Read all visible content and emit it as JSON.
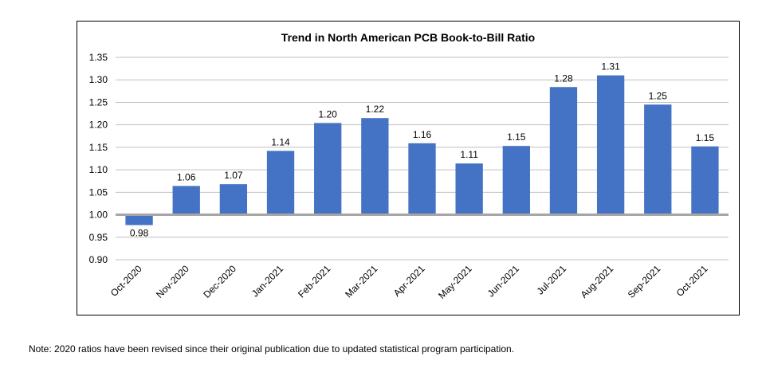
{
  "chart_data": {
    "type": "bar",
    "title": "Trend in North American PCB Book-to-Bill Ratio",
    "xlabel": "",
    "ylabel": "",
    "categories": [
      "Oct-2020",
      "Nov-2020",
      "Dec-2020",
      "Jan-2021",
      "Feb-2021",
      "Mar-2021",
      "Apr-2021",
      "May-2021",
      "Jun-2021",
      "Jul-2021",
      "Aug-2021",
      "Sep-2021",
      "Oct-2021"
    ],
    "values": [
      0.977,
      1.064,
      1.068,
      1.142,
      1.204,
      1.215,
      1.159,
      1.114,
      1.153,
      1.284,
      1.31,
      1.245,
      1.152
    ],
    "data_labels": [
      "0.98",
      "1.06",
      "1.07",
      "1.14",
      "1.20",
      "1.22",
      "1.16",
      "1.11",
      "1.15",
      "1.28",
      "1.31",
      "1.25",
      "1.15"
    ],
    "baseline": 1.0,
    "ylim": [
      0.9,
      1.35
    ],
    "yticks": [
      0.9,
      0.95,
      1.0,
      1.05,
      1.1,
      1.15,
      1.2,
      1.25,
      1.3,
      1.35
    ],
    "ytick_labels": [
      "0.90",
      "0.95",
      "1.00",
      "1.05",
      "1.10",
      "1.15",
      "1.20",
      "1.25",
      "1.30",
      "1.35"
    ],
    "grid": true,
    "legend": "none",
    "bar_color": "#4472c4",
    "grid_color": "#bfbfbf",
    "baseline_color": "#a6a6a6"
  },
  "footnote": "Note: 2020 ratios have been revised since their original publication due to updated statistical program participation."
}
